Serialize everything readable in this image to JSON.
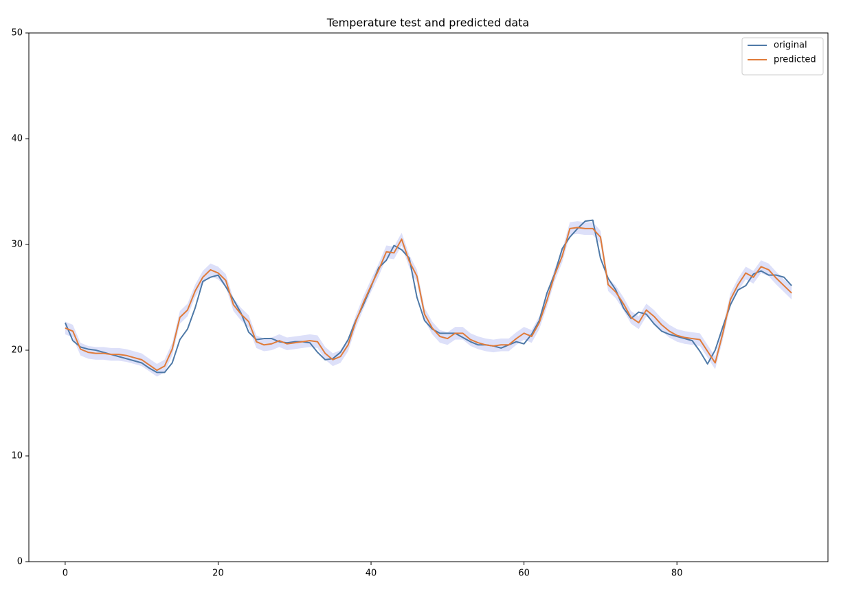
{
  "chart_data": {
    "type": "line",
    "title": "Temperature test and predicted data",
    "x": [
      0,
      1,
      2,
      3,
      4,
      5,
      6,
      7,
      8,
      9,
      10,
      11,
      12,
      13,
      14,
      15,
      16,
      17,
      18,
      19,
      20,
      21,
      22,
      23,
      24,
      25,
      26,
      27,
      28,
      29,
      30,
      31,
      32,
      33,
      34,
      35,
      36,
      37,
      38,
      39,
      40,
      41,
      42,
      43,
      44,
      45,
      46,
      47,
      48,
      49,
      50,
      51,
      52,
      53,
      54,
      55,
      56,
      57,
      58,
      59,
      60,
      61,
      62,
      63,
      64,
      65,
      66,
      67,
      68,
      69,
      70,
      71,
      72,
      73,
      74,
      75,
      76,
      77,
      78,
      79,
      80,
      81,
      82,
      83,
      84,
      85,
      86,
      87,
      88,
      89,
      90,
      91,
      92,
      93,
      94,
      95
    ],
    "series": [
      {
        "name": "original",
        "color": "#4e79a7",
        "values": [
          22.6,
          20.9,
          20.3,
          20.1,
          20.0,
          19.8,
          19.6,
          19.4,
          19.2,
          19.0,
          18.8,
          18.3,
          17.9,
          17.9,
          18.8,
          21.0,
          22.0,
          24.0,
          26.5,
          26.9,
          27.1,
          26.0,
          24.8,
          23.5,
          21.7,
          21.0,
          21.1,
          21.1,
          20.8,
          20.7,
          20.8,
          20.8,
          20.7,
          19.8,
          19.1,
          19.2,
          19.8,
          21.0,
          22.8,
          24.3,
          26.0,
          27.8,
          28.5,
          29.9,
          29.5,
          28.7,
          25.0,
          22.8,
          22.0,
          21.6,
          21.6,
          21.6,
          21.2,
          20.8,
          20.5,
          20.5,
          20.4,
          20.2,
          20.5,
          20.8,
          20.6,
          21.5,
          22.8,
          25.4,
          27.2,
          29.6,
          30.7,
          31.5,
          32.2,
          32.3,
          28.7,
          26.8,
          25.7,
          24.0,
          23.0,
          23.6,
          23.4,
          22.5,
          21.8,
          21.5,
          21.3,
          21.1,
          20.9,
          19.9,
          18.7,
          20.0,
          22.2,
          24.3,
          25.7,
          26.1,
          27.2,
          27.5,
          27.1,
          27.1,
          26.9,
          26.1
        ]
      },
      {
        "name": "predicted",
        "color": "#e07b39",
        "values": [
          22.1,
          21.8,
          20.1,
          19.8,
          19.7,
          19.7,
          19.6,
          19.6,
          19.5,
          19.3,
          19.1,
          18.6,
          18.1,
          18.5,
          20.1,
          23.1,
          23.8,
          25.6,
          26.9,
          27.6,
          27.3,
          26.6,
          24.3,
          23.4,
          22.7,
          20.8,
          20.5,
          20.6,
          20.9,
          20.6,
          20.7,
          20.8,
          20.9,
          20.8,
          19.7,
          19.1,
          19.4,
          20.5,
          22.7,
          24.5,
          26.1,
          27.6,
          29.3,
          29.2,
          30.5,
          28.4,
          27.0,
          23.4,
          22.1,
          21.3,
          21.1,
          21.6,
          21.6,
          21.0,
          20.7,
          20.5,
          20.4,
          20.5,
          20.5,
          21.1,
          21.6,
          21.3,
          22.6,
          24.7,
          27.1,
          28.9,
          31.5,
          31.6,
          31.5,
          31.5,
          30.7,
          26.2,
          25.5,
          24.4,
          23.1,
          22.6,
          23.8,
          23.2,
          22.4,
          21.8,
          21.4,
          21.2,
          21.1,
          21.0,
          19.9,
          18.8,
          21.6,
          24.8,
          26.2,
          27.3,
          26.9,
          27.9,
          27.6,
          26.8,
          26.1,
          25.4
        ],
        "band": 0.6,
        "band_color": "#d4d8f7"
      }
    ],
    "xlim": [
      -4.75,
      99.75
    ],
    "xticks": [
      0,
      20,
      40,
      60,
      80
    ],
    "ylim": [
      0,
      50
    ],
    "yticks": [
      0,
      10,
      20,
      30,
      40,
      50
    ],
    "legend": "upper right"
  }
}
